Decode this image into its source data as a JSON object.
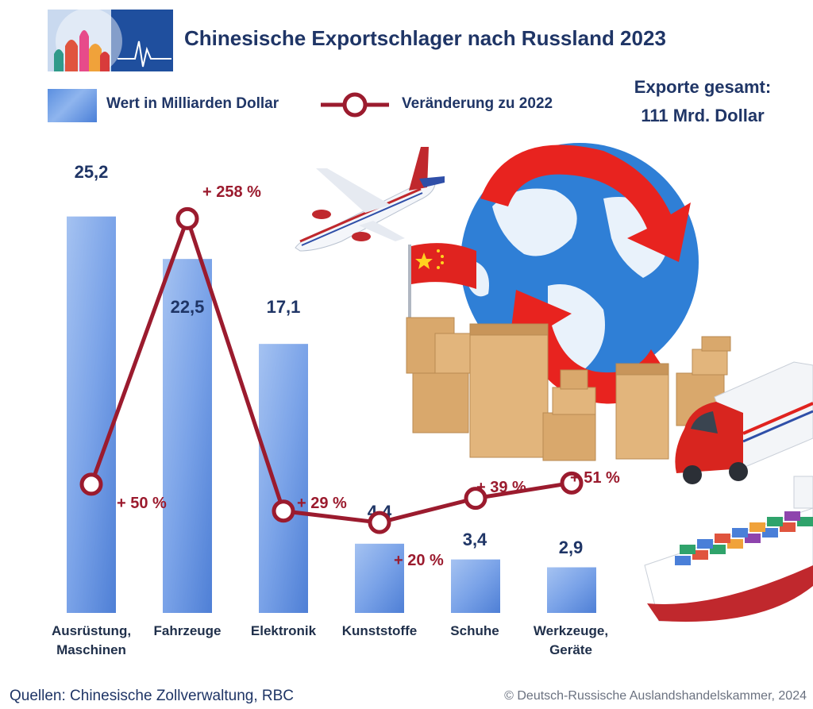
{
  "header": {
    "title": "Chinesische Exportschlager nach Russland 2023",
    "total_line1": "Exporte gesamt:",
    "total_line2": "111 Mrd. Dollar"
  },
  "legend": {
    "bar_label": "Wert in Milliarden Dollar",
    "line_label": "Veränderung zu 2022"
  },
  "footer": {
    "source": "Quellen: Chinesische Zollverwaltung, RBC",
    "copyright": "© Deutsch-Russische Auslandshandelskammer, 2024"
  },
  "colors": {
    "bar": "#4a7fd8",
    "line": "#9b1b2e",
    "text": "#1f3566"
  },
  "chart_data": {
    "type": "bar",
    "title": "Chinesische Exportschlager nach Russland 2023",
    "categories": [
      [
        "Ausrüstung,",
        "Maschinen"
      ],
      [
        "Fahrzeuge"
      ],
      [
        "Elektronik"
      ],
      [
        "Kunststoffe"
      ],
      [
        "Schuhe"
      ],
      [
        "Werkzeuge,",
        "Geräte"
      ]
    ],
    "series": [
      {
        "name": "Wert in Milliarden Dollar",
        "type": "bar",
        "values": [
          25.2,
          22.5,
          17.1,
          4.4,
          3.4,
          2.9
        ],
        "labels": [
          "25,2",
          "22,5",
          "17,1",
          "4,4",
          "3,4",
          "2,9"
        ]
      },
      {
        "name": "Veränderung zu 2022",
        "type": "line",
        "values": [
          50,
          258,
          29,
          20,
          39,
          51
        ],
        "labels": [
          "+ 50 %",
          "+ 258 %",
          "+ 29 %",
          "+ 20 %",
          "+ 39 %",
          "+ 51 %"
        ]
      }
    ],
    "ylim": [
      0,
      27
    ],
    "y2lim": [
      -6,
      280
    ],
    "grid": false,
    "legend": "top-left"
  }
}
